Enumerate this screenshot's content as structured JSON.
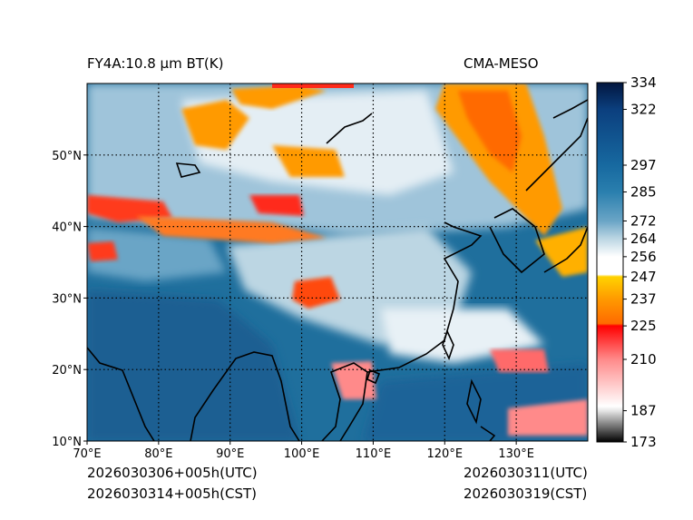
{
  "header": {
    "product_title": "FY4A:10.8 μm BT(K)",
    "model_name": "CMA-MESO"
  },
  "footer": {
    "init_utc": "2026030306+005h(UTC)",
    "init_cst": "2026030314+005h(CST)",
    "valid_utc": "2026030311(UTC)",
    "valid_cst": "2026030319(CST)"
  },
  "map": {
    "lon_range": [
      70,
      140
    ],
    "lat_range": [
      10,
      60
    ],
    "lon_ticks": [
      {
        "value": 70,
        "label": "70°E"
      },
      {
        "value": 80,
        "label": "80°E"
      },
      {
        "value": 90,
        "label": "90°E"
      },
      {
        "value": 100,
        "label": "100°E"
      },
      {
        "value": 110,
        "label": "110°E"
      },
      {
        "value": 120,
        "label": "120°E"
      },
      {
        "value": 130,
        "label": "130°E"
      }
    ],
    "lat_ticks": [
      {
        "value": 10,
        "label": "10°N"
      },
      {
        "value": 20,
        "label": "20°N"
      },
      {
        "value": 30,
        "label": "30°N"
      },
      {
        "value": 40,
        "label": "40°N"
      },
      {
        "value": 50,
        "label": "50°N"
      }
    ],
    "gridline_style": "dotted",
    "background_color": "#1f6f9d"
  },
  "colorbar": {
    "min": 173,
    "max": 334,
    "ticks": [
      173,
      187,
      210,
      225,
      237,
      247,
      256,
      264,
      272,
      285,
      297,
      322,
      334
    ],
    "stops": [
      {
        "value": 173,
        "color": "#000000"
      },
      {
        "value": 187,
        "color": "#e6e6e6"
      },
      {
        "value": 189,
        "color": "#ffffff"
      },
      {
        "value": 210,
        "color": "#ff8a8a"
      },
      {
        "value": 225,
        "color": "#ff0000"
      },
      {
        "value": 226,
        "color": "#ff6a00"
      },
      {
        "value": 237,
        "color": "#ff9a00"
      },
      {
        "value": 247,
        "color": "#ffd200"
      },
      {
        "value": 248,
        "color": "#ffffff"
      },
      {
        "value": 256,
        "color": "#ffffff"
      },
      {
        "value": 264,
        "color": "#bcd6e3"
      },
      {
        "value": 272,
        "color": "#6aa5c6"
      },
      {
        "value": 285,
        "color": "#2a7fae"
      },
      {
        "value": 297,
        "color": "#1769a0"
      },
      {
        "value": 322,
        "color": "#0b3f7e"
      },
      {
        "value": 334,
        "color": "#02163f"
      }
    ]
  }
}
